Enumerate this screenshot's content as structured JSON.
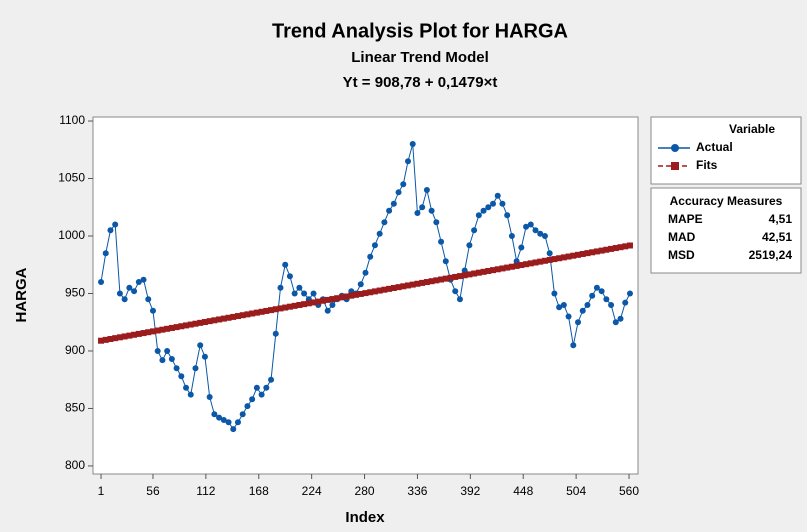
{
  "chart_data": {
    "type": "trend",
    "title": "Trend Analysis Plot for HARGA",
    "subtitle": "Linear Trend Model",
    "equation": "Yt = 908,78 + 0,1479×t",
    "xlabel": "Index",
    "ylabel": "HARGA",
    "legend_title": "Variable",
    "x": [
      1,
      6,
      11,
      16,
      21,
      26,
      31,
      36,
      41,
      46,
      51,
      56,
      61,
      66,
      71,
      76,
      81,
      86,
      91,
      96,
      101,
      106,
      111,
      116,
      121,
      126,
      131,
      136,
      141,
      146,
      151,
      156,
      161,
      166,
      171,
      176,
      181,
      186,
      191,
      196,
      201,
      206,
      211,
      216,
      221,
      226,
      231,
      236,
      241,
      246,
      251,
      256,
      261,
      266,
      271,
      276,
      281,
      286,
      291,
      296,
      301,
      306,
      311,
      316,
      321,
      326,
      331,
      336,
      341,
      346,
      351,
      356,
      361,
      366,
      371,
      376,
      381,
      386,
      391,
      396,
      401,
      406,
      411,
      416,
      421,
      426,
      431,
      436,
      441,
      446,
      451,
      456,
      461,
      466,
      471,
      476,
      481,
      486,
      491,
      496,
      501,
      506,
      511,
      516,
      521,
      526,
      531,
      536,
      541,
      546,
      551,
      556,
      561
    ],
    "series": [
      {
        "name": "Actual",
        "color": "#0b57a8",
        "marker": "circle",
        "values": [
          960,
          985,
          1005,
          1010,
          950,
          945,
          955,
          952,
          960,
          962,
          945,
          935,
          900,
          892,
          900,
          893,
          885,
          878,
          868,
          862,
          885,
          905,
          895,
          860,
          845,
          842,
          840,
          838,
          832,
          838,
          845,
          852,
          858,
          868,
          862,
          868,
          875,
          915,
          955,
          975,
          965,
          950,
          955,
          950,
          945,
          950,
          940,
          945,
          935,
          940,
          945,
          948,
          945,
          952,
          950,
          958,
          968,
          982,
          992,
          1002,
          1012,
          1022,
          1028,
          1038,
          1045,
          1065,
          1080,
          1020,
          1025,
          1040,
          1022,
          1012,
          995,
          978,
          962,
          952,
          945,
          970,
          992,
          1005,
          1018,
          1022,
          1025,
          1028,
          1035,
          1028,
          1018,
          1000,
          978,
          990,
          1008,
          1010,
          1005,
          1002,
          1000,
          985,
          950,
          938,
          940,
          930,
          905,
          925,
          935,
          940,
          948,
          955,
          952,
          945,
          940,
          925,
          928,
          942,
          950
        ]
      },
      {
        "name": "Fits",
        "color": "#9b1c1c",
        "marker": "square",
        "values": [
          908.93,
          909.67,
          910.41,
          911.15,
          911.89,
          912.63,
          913.36,
          914.1,
          914.84,
          915.58,
          916.32,
          917.06,
          917.8,
          918.54,
          919.28,
          920.02,
          920.76,
          921.5,
          922.24,
          922.98,
          923.72,
          924.46,
          925.2,
          925.94,
          926.68,
          927.42,
          928.15,
          928.89,
          929.63,
          930.37,
          931.11,
          931.85,
          932.59,
          933.33,
          934.07,
          934.81,
          935.55,
          936.29,
          937.03,
          937.77,
          938.51,
          939.25,
          939.99,
          940.73,
          941.47,
          942.21,
          942.94,
          943.68,
          944.42,
          945.16,
          945.9,
          946.64,
          947.38,
          948.12,
          948.86,
          949.6,
          950.34,
          951.08,
          951.82,
          952.56,
          953.3,
          954.04,
          954.78,
          955.52,
          956.26,
          957.0,
          957.73,
          958.47,
          959.21,
          959.95,
          960.69,
          961.43,
          962.17,
          962.91,
          963.65,
          964.39,
          965.13,
          965.87,
          966.61,
          967.35,
          968.09,
          968.83,
          969.57,
          970.31,
          971.05,
          971.79,
          972.53,
          973.26,
          974.0,
          974.74,
          975.48,
          976.22,
          976.96,
          977.7,
          978.44,
          979.18,
          979.92,
          980.66,
          981.4,
          982.14,
          982.88,
          983.62,
          984.36,
          985.1,
          985.84,
          986.58,
          987.31,
          988.05,
          988.79,
          989.53,
          990.27,
          991.01,
          991.75
        ]
      }
    ],
    "xlim": [
      -7.5,
      569.5
    ],
    "xticks": [
      1,
      56,
      112,
      168,
      224,
      280,
      336,
      392,
      448,
      504,
      560
    ],
    "ylim": [
      793,
      1103.5
    ],
    "yticks": [
      800,
      850,
      900,
      950,
      1000,
      1050,
      1100
    ],
    "accuracy": {
      "title": "Accuracy Measures",
      "rows": [
        [
          "MAPE",
          "4,51"
        ],
        [
          "MAD",
          "42,51"
        ],
        [
          "MSD",
          "2519,24"
        ]
      ]
    }
  }
}
